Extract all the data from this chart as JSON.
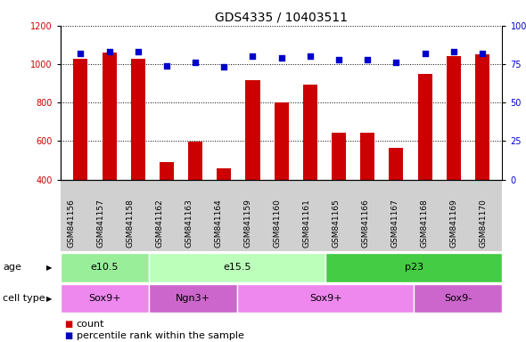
{
  "title": "GDS4335 / 10403511",
  "samples": [
    "GSM841156",
    "GSM841157",
    "GSM841158",
    "GSM841162",
    "GSM841163",
    "GSM841164",
    "GSM841159",
    "GSM841160",
    "GSM841161",
    "GSM841165",
    "GSM841166",
    "GSM841167",
    "GSM841168",
    "GSM841169",
    "GSM841170"
  ],
  "counts": [
    1030,
    1060,
    1030,
    490,
    595,
    460,
    915,
    800,
    895,
    645,
    645,
    565,
    950,
    1040,
    1050
  ],
  "percentiles": [
    82,
    83,
    83,
    74,
    76,
    73,
    80,
    79,
    80,
    78,
    78,
    76,
    82,
    83,
    82
  ],
  "ylim_left": [
    400,
    1200
  ],
  "ylim_right": [
    0,
    100
  ],
  "yticks_left": [
    400,
    600,
    800,
    1000,
    1200
  ],
  "yticks_right": [
    0,
    25,
    50,
    75,
    100
  ],
  "bar_color": "#cc0000",
  "dot_color": "#0000cc",
  "age_groups": [
    {
      "label": "e10.5",
      "start": 0,
      "end": 3,
      "color": "#99ee99"
    },
    {
      "label": "e15.5",
      "start": 3,
      "end": 9,
      "color": "#bbffbb"
    },
    {
      "label": "p23",
      "start": 9,
      "end": 15,
      "color": "#44cc44"
    }
  ],
  "cell_groups": [
    {
      "label": "Sox9+",
      "start": 0,
      "end": 3,
      "color": "#ee88ee"
    },
    {
      "label": "Ngn3+",
      "start": 3,
      "end": 6,
      "color": "#cc66cc"
    },
    {
      "label": "Sox9+",
      "start": 6,
      "end": 12,
      "color": "#ee88ee"
    },
    {
      "label": "Sox9-",
      "start": 12,
      "end": 15,
      "color": "#cc66cc"
    }
  ],
  "age_label": "age",
  "cell_type_label": "cell type",
  "legend_count_label": "count",
  "legend_percentile_label": "percentile rank within the sample",
  "background_color": "#ffffff",
  "plot_bg_color": "#ffffff",
  "xtick_bg_color": "#d0d0d0",
  "title_fontsize": 10,
  "tick_fontsize": 7,
  "label_fontsize": 8,
  "annotation_fontsize": 8
}
